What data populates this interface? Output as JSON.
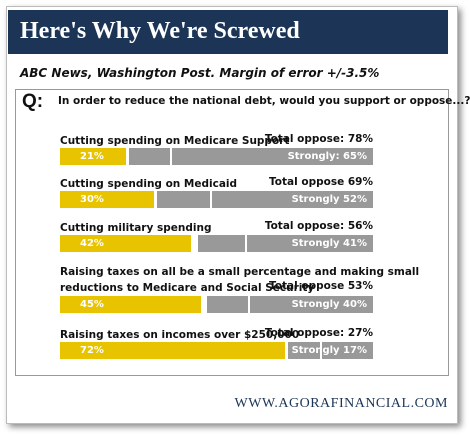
{
  "chart_data": {
    "type": "bar",
    "title": "Here's Why We're Screwed",
    "subtitle": "ABC News, Washington Post. Margin of error +/-3.5%",
    "question_marker": "Q:",
    "question": "In order to reduce the national debt, would you support or oppose...?",
    "categories": [
      "Cutting spending on Medicare Support",
      "Cutting spending on Medicaid",
      "Cutting military spending",
      "Raising taxes on all be a small percentage and making small\nreductions to Medicare and Social Security",
      "Raising taxes on incomes over $250,000"
    ],
    "xlim": [
      0,
      100
    ],
    "series": [
      {
        "color": "#e8c300",
        "values": [
          21,
          30,
          42,
          45,
          72
        ],
        "value_labels": [
          "21%",
          "30%",
          "42%",
          "45%",
          "72%"
        ]
      },
      {
        "color": "#999999",
        "values": [
          78,
          69,
          56,
          53,
          27
        ],
        "value_labels": [
          "Total oppose: 78%",
          "Total oppose 69%",
          "Total oppose: 56%",
          "Total oppose 53%",
          "Total oppose: 27%"
        ]
      },
      {
        "color": "#999999",
        "values": [
          65,
          52,
          41,
          40,
          17
        ],
        "value_labels": [
          "Strongly: 65%",
          "Strongly 52%",
          "Strongly 41%",
          "Strongly 40%",
          "Strongly 17%"
        ]
      }
    ],
    "footer": "WWW.AGORAFINANCIAL.COM"
  }
}
